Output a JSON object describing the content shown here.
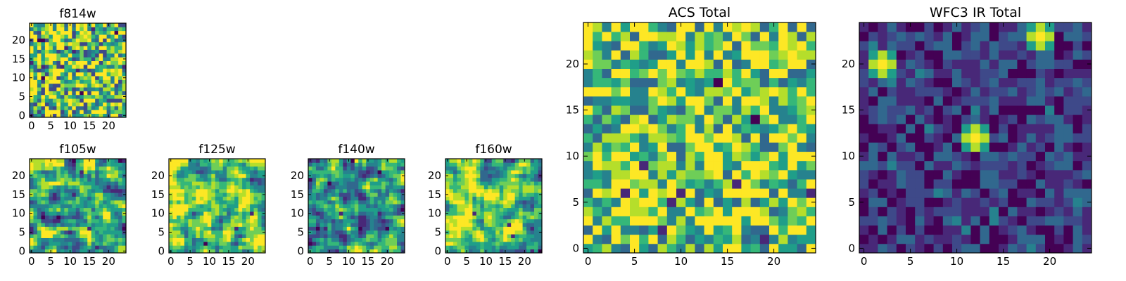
{
  "chart_data": [
    {
      "type": "heatmap",
      "title": "f814w",
      "grid": "25x25 pixel image",
      "colormap": "viridis",
      "xlim": [
        -0.5,
        24.5
      ],
      "ylim": [
        -0.5,
        24.5
      ],
      "xticks": [
        0,
        5,
        10,
        15,
        20
      ],
      "yticks": [
        0,
        5,
        10,
        15,
        20
      ],
      "description_values": "noise-like field, mostly green-yellow with scattered dark pixels"
    },
    {
      "type": "heatmap",
      "title": "f105w",
      "grid": "25x25 pixel image",
      "colormap": "viridis",
      "xlim": [
        -0.5,
        24.5
      ],
      "ylim": [
        -0.5,
        24.5
      ],
      "xticks": [
        0,
        5,
        10,
        15,
        20
      ],
      "yticks": [
        0,
        5,
        10,
        15,
        20
      ],
      "description_values": "smooth noise, yellow-green with dark patches"
    },
    {
      "type": "heatmap",
      "title": "f125w",
      "grid": "25x25 pixel image",
      "colormap": "viridis",
      "xlim": [
        -0.5,
        24.5
      ],
      "ylim": [
        -0.5,
        24.5
      ],
      "xticks": [
        0,
        5,
        10,
        15,
        20
      ],
      "yticks": [
        0,
        5,
        10,
        15,
        20
      ],
      "description_values": "smooth noise, mostly yellow-green"
    },
    {
      "type": "heatmap",
      "title": "f140w",
      "grid": "25x25 pixel image",
      "colormap": "viridis",
      "xlim": [
        -0.5,
        24.5
      ],
      "ylim": [
        -0.5,
        24.5
      ],
      "xticks": [
        0,
        5,
        10,
        15,
        20
      ],
      "yticks": [
        0,
        5,
        10,
        15,
        20
      ],
      "description_values": "smooth noise, mixed green-teal with dark patches"
    },
    {
      "type": "heatmap",
      "title": "f160w",
      "grid": "25x25 pixel image",
      "colormap": "viridis",
      "xlim": [
        -0.5,
        24.5
      ],
      "ylim": [
        -0.5,
        24.5
      ],
      "xticks": [
        0,
        5,
        10,
        15,
        20
      ],
      "yticks": [
        0,
        5,
        10,
        15,
        20
      ],
      "description_values": "smooth noise, yellow-green with dark patches"
    },
    {
      "type": "heatmap",
      "title": "ACS Total",
      "grid": "25x25 pixel image",
      "colormap": "viridis",
      "xlim": [
        -0.5,
        24.5
      ],
      "ylim": [
        -0.5,
        24.5
      ],
      "xticks": [
        0,
        5,
        10,
        15,
        20
      ],
      "yticks": [
        0,
        5,
        10,
        15,
        20
      ],
      "description_values": "mostly green-yellow noise with a few dark pixels"
    },
    {
      "type": "heatmap",
      "title": "WFC3 IR Total",
      "grid": "25x25 pixel image",
      "colormap": "viridis",
      "xlim": [
        -0.5,
        24.5
      ],
      "ylim": [
        -0.5,
        24.5
      ],
      "xticks": [
        0,
        5,
        10,
        15,
        20
      ],
      "yticks": [
        0,
        5,
        10,
        15,
        20
      ],
      "description_values": "dark blue-purple background with bright sources at approx (12,12), (2,20), (19,23)",
      "bright_sources": [
        {
          "x": 12,
          "y": 12
        },
        {
          "x": 2,
          "y": 20
        },
        {
          "x": 19,
          "y": 23
        }
      ]
    }
  ],
  "colors": {
    "viridis": [
      "#440154",
      "#482878",
      "#3e4989",
      "#31688e",
      "#26828e",
      "#1f9e89",
      "#35b779",
      "#6ece58",
      "#b5de2b",
      "#fde725"
    ]
  }
}
